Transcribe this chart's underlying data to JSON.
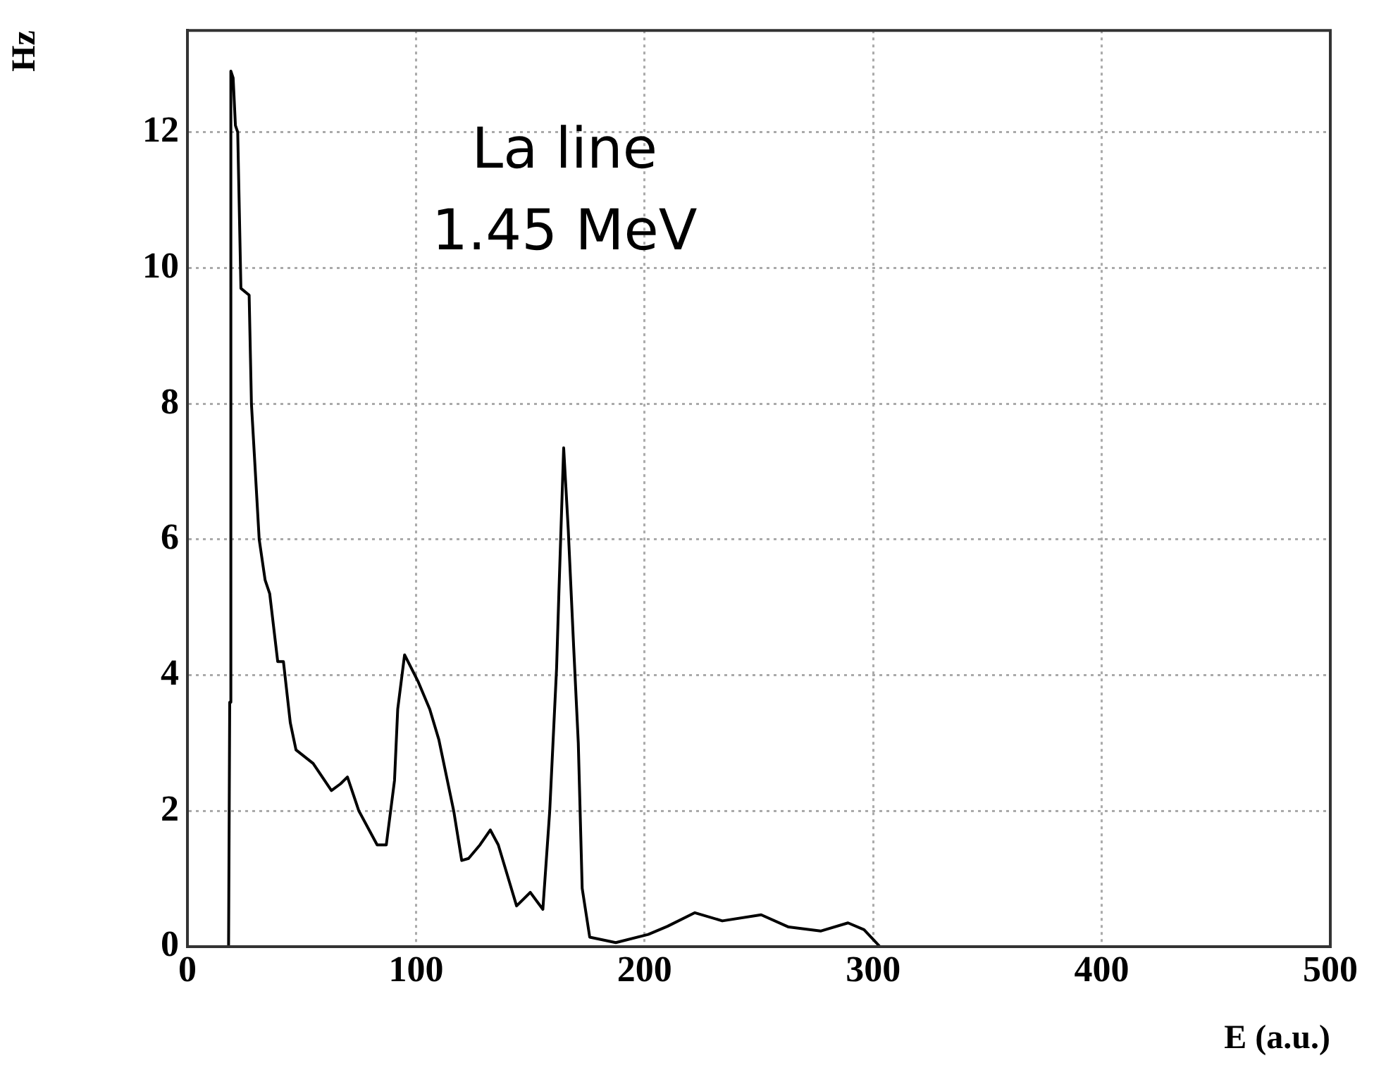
{
  "chart_data": {
    "type": "line",
    "xlabel": "E (a.u.)",
    "ylabel": "Hz",
    "annotations": [
      "La line 1.45 MeV"
    ],
    "series": [
      {
        "color": "#000000",
        "x": [
          18,
          18.5,
          19,
          20,
          21,
          22,
          23.4,
          27,
          28,
          31.4,
          34,
          36,
          39.5,
          42,
          45,
          47.5,
          55,
          63,
          67,
          70,
          75,
          83,
          87,
          90.6,
          92,
          95,
          101,
          106,
          110,
          116.5,
          120,
          123,
          128,
          132.5,
          136,
          144,
          150,
          155.5,
          158.5,
          161.5,
          162.5,
          164.6,
          166.6,
          169,
          171,
          172.7,
          176,
          187.4,
          201.6,
          210,
          222,
          234,
          251,
          263,
          277,
          289,
          296,
          303
        ],
        "values": [
          0,
          3.6,
          12.9,
          12.8,
          12.1,
          12,
          9.7,
          9.6,
          8,
          6,
          5.4,
          5.2,
          4.2,
          4.2,
          3.3,
          2.9,
          2.7,
          2.3,
          2.4,
          2.5,
          2,
          1.5,
          1.5,
          2.45,
          3.5,
          4.3,
          3.9,
          3.5,
          3.05,
          2,
          1.27,
          1.3,
          1.5,
          1.72,
          1.5,
          0.6,
          0.8,
          0.55,
          2,
          4.1,
          5.2,
          7.35,
          6.15,
          4.4,
          3,
          0.86,
          0.14,
          0.06,
          0.18,
          0.3,
          0.5,
          0.38,
          0.47,
          0.29,
          0.23,
          0.35,
          0.25,
          0
        ]
      }
    ],
    "xlim": [
      0,
      500
    ],
    "xticks": [
      0,
      100,
      200,
      300,
      400,
      500
    ],
    "ylim": [
      0,
      13.5
    ],
    "yticks": [
      0,
      2,
      4,
      6,
      8,
      10,
      12
    ],
    "grid": true,
    "legend": false,
    "marker": "none",
    "line_style": "solid"
  }
}
